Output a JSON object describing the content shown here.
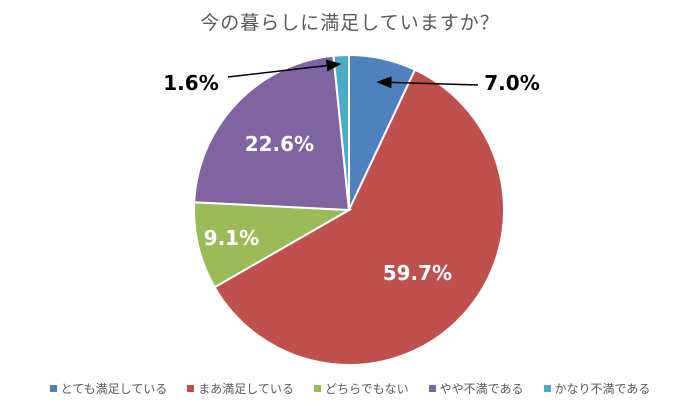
{
  "chart_data": {
    "type": "pie",
    "title": "今の暮らしに満足していますか？",
    "categories": [
      "とても満足している",
      "まあ満足している",
      "どちらでもない",
      "やや不満である",
      "かなり不満である"
    ],
    "values": [
      7.0,
      59.7,
      9.1,
      22.6,
      1.6
    ],
    "labels": [
      "7.0%",
      "59.7%",
      "9.1%",
      "22.6%",
      "1.6%"
    ],
    "colors": [
      "#4f81bd",
      "#c0504d",
      "#9bbb59",
      "#8064a2",
      "#4bacc6"
    ],
    "legend_position": "bottom"
  }
}
